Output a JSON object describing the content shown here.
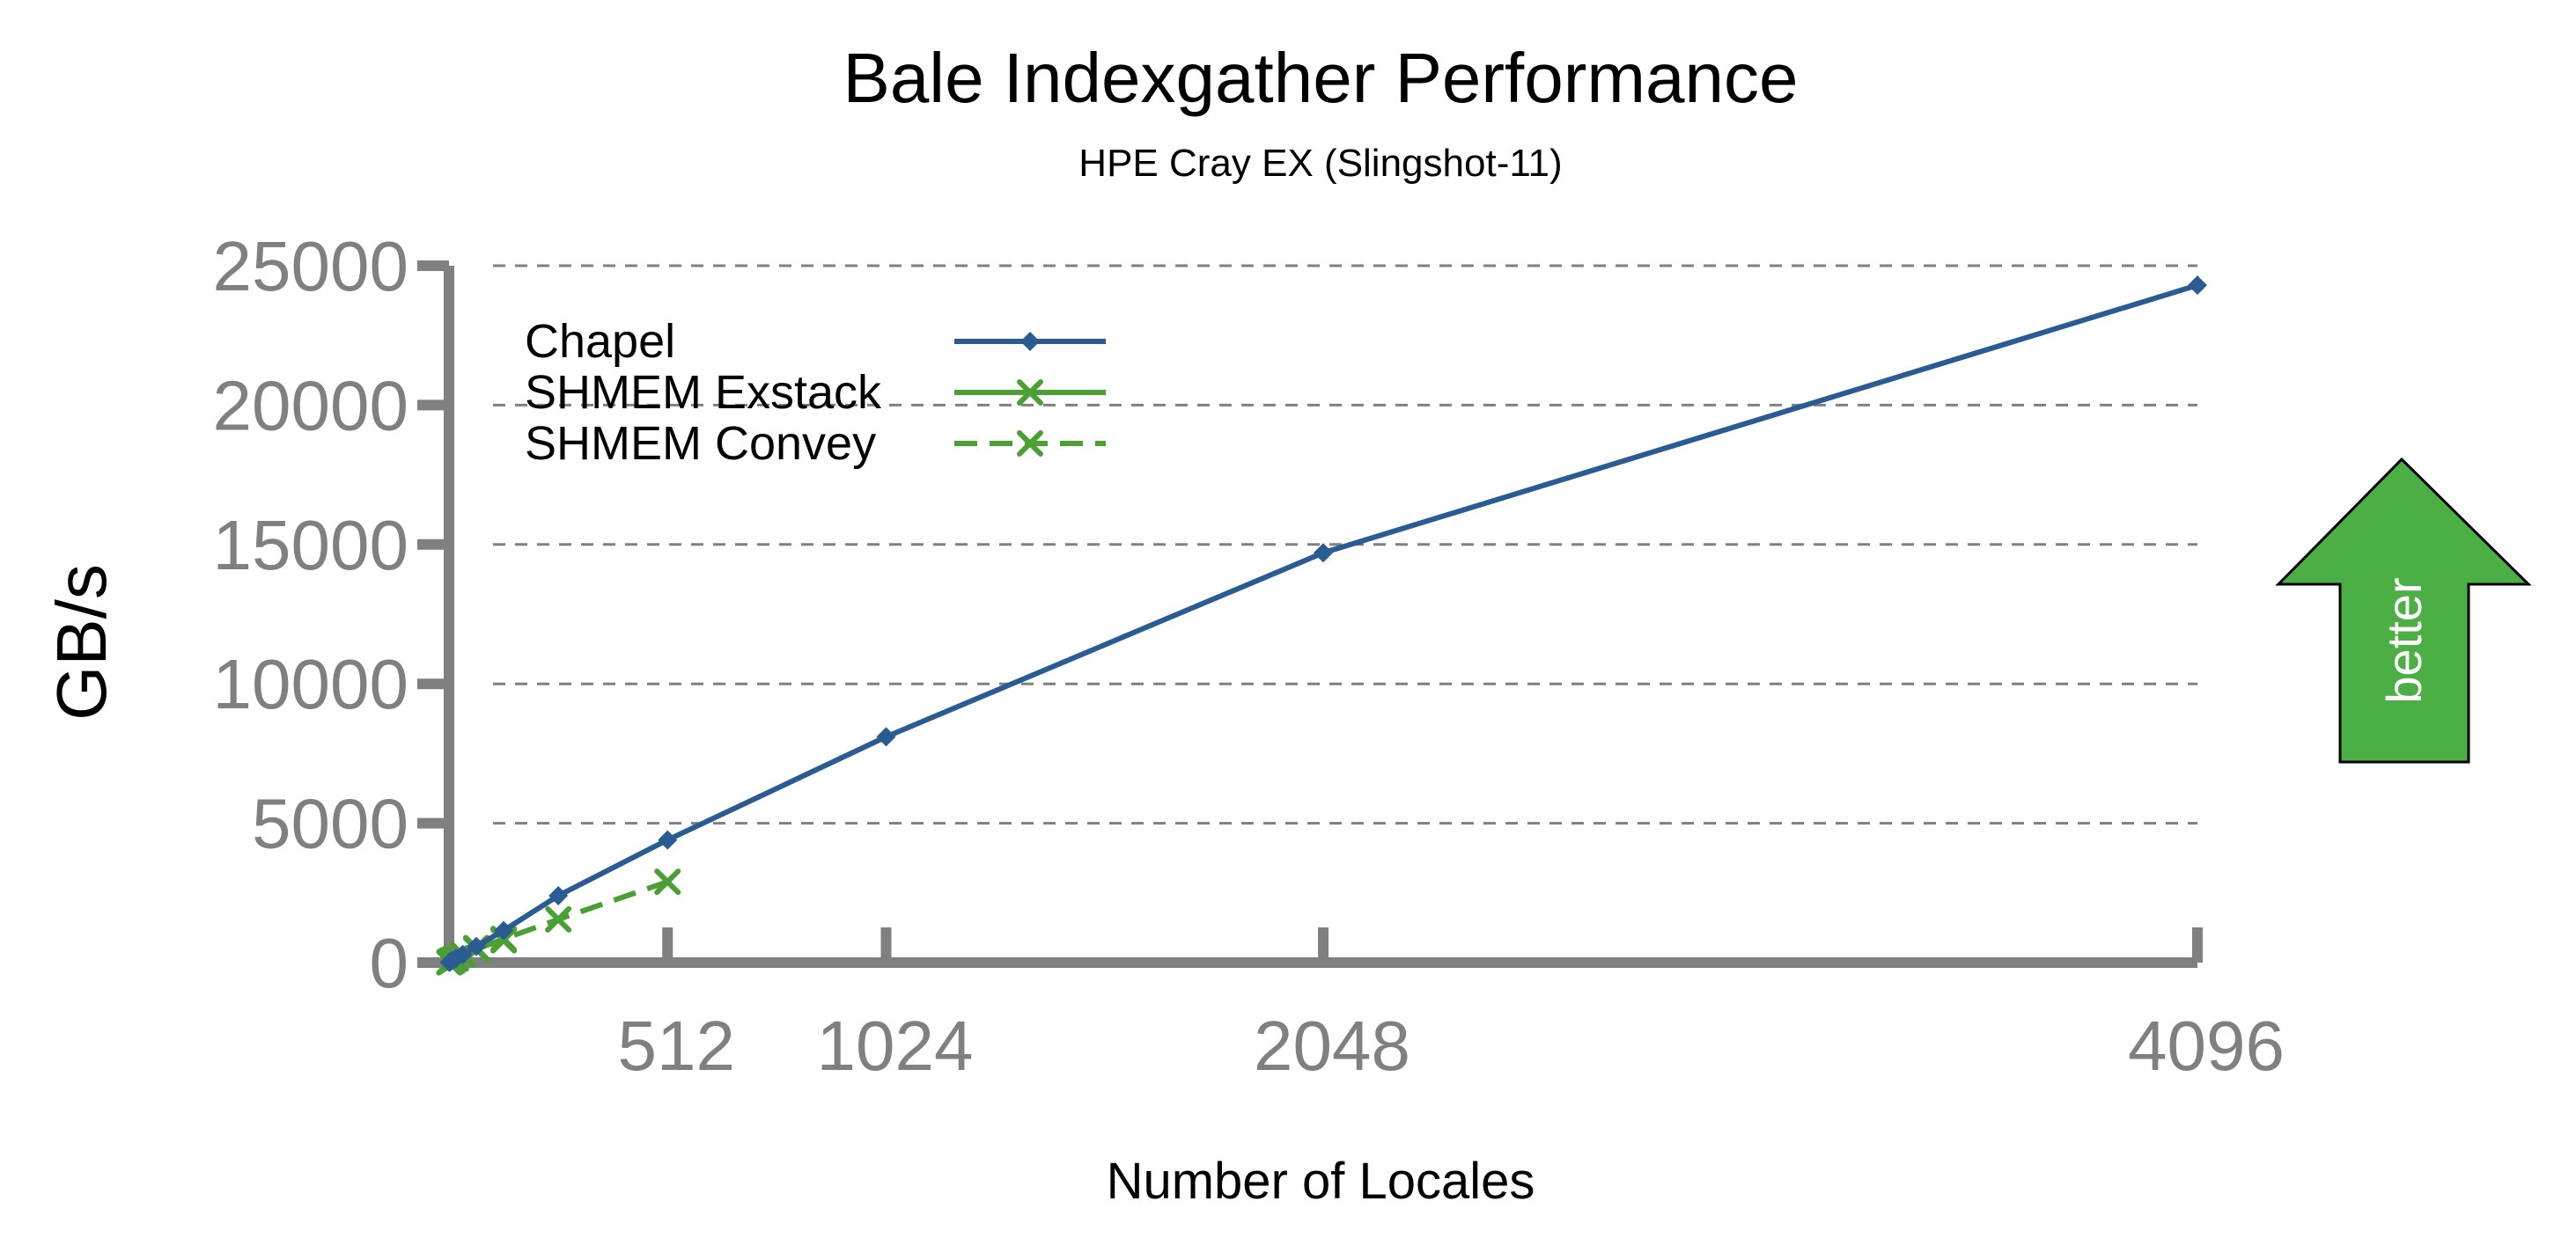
{
  "chart_data": {
    "type": "line",
    "title": "Bale Indexgather Performance",
    "subtitle": "HPE Cray EX (Slingshot-11)",
    "xlabel": "Number of Locales",
    "ylabel": "GB/s",
    "xlim": [
      0,
      4096
    ],
    "ylim": [
      0,
      25000
    ],
    "x_ticks": [
      "512",
      "1024",
      "2048",
      "4096"
    ],
    "y_ticks": [
      "0",
      "5000",
      "10000",
      "15000",
      "20000",
      "25000"
    ],
    "grid": "horizontal dashed",
    "legend_position": "top-left",
    "series": [
      {
        "name": "Chapel",
        "color": "#2a5b92",
        "marker": "diamond",
        "dash": "solid",
        "x": [
          1,
          2,
          4,
          8,
          16,
          32,
          64,
          128,
          256,
          512,
          1024,
          2048,
          4096
        ],
        "y": [
          10,
          20,
          40,
          80,
          150,
          290,
          580,
          1150,
          2400,
          4400,
          8100,
          14700,
          24300
        ]
      },
      {
        "name": "SHMEM Exstack",
        "color": "#4a9f35",
        "marker": "x",
        "dash": "solid",
        "x": [
          1,
          2,
          4,
          8,
          16,
          32,
          64,
          128
        ],
        "y": [
          10,
          20,
          40,
          80,
          150,
          280,
          520,
          800
        ]
      },
      {
        "name": "SHMEM Convey",
        "color": "#4a9f35",
        "marker": "x",
        "dash": "dashed",
        "x": [
          1,
          2,
          4,
          8,
          16,
          32,
          64,
          128,
          256,
          512
        ],
        "y": [
          10,
          20,
          40,
          80,
          150,
          280,
          480,
          850,
          1550,
          2900
        ]
      }
    ],
    "annotation": {
      "text": "better",
      "color": "#4caf45"
    }
  }
}
